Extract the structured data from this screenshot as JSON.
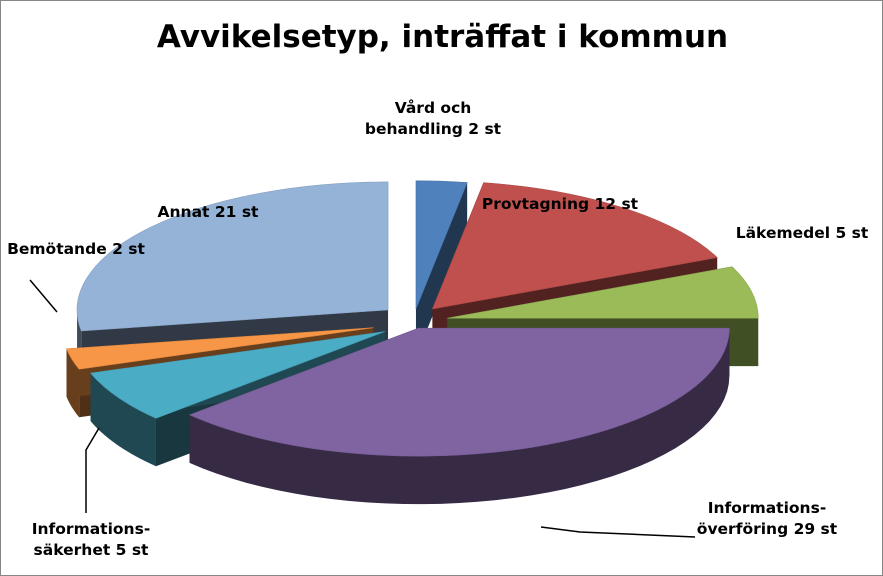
{
  "chart_data": {
    "type": "pie",
    "title": "Avvikelsetyp, inträffat i kommun",
    "slices": [
      {
        "label": [
          "Vård och",
          "behandling 2 st"
        ],
        "value": 2,
        "color": "#4F81BD"
      },
      {
        "label": [
          "Provtagning 12 st"
        ],
        "value": 12,
        "color": "#C0504D"
      },
      {
        "label": [
          "Läkemedel 5 st"
        ],
        "value": 5,
        "color": "#9BBB59"
      },
      {
        "label": [
          "Informations-",
          "överföring 29 st"
        ],
        "value": 29,
        "color": "#8064A2"
      },
      {
        "label": [
          "Informations-",
          "säkerhet 5 st"
        ],
        "value": 5,
        "color": "#4BACC6"
      },
      {
        "label": [
          "Bemötande 2 st"
        ],
        "value": 2,
        "color": "#F79646"
      },
      {
        "label": [
          "Annat 21 st"
        ],
        "value": 21,
        "color": "#95B3D7"
      }
    ],
    "exploded": true,
    "three_d": true,
    "legend": "none"
  }
}
